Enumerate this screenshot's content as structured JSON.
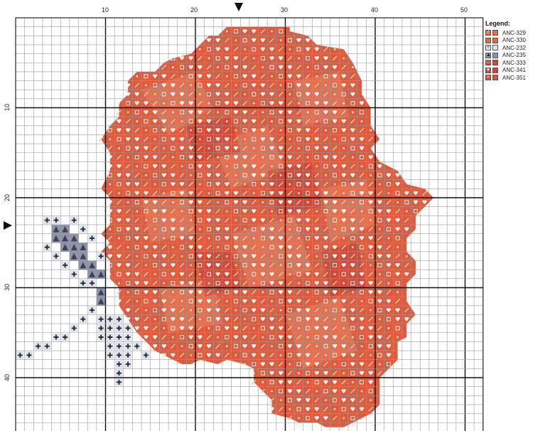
{
  "chart": {
    "grid": {
      "columns": 52,
      "rows": 47
    },
    "x_ticks": [
      "10",
      "20",
      "30",
      "40",
      "50"
    ],
    "y_ticks": [
      "10",
      "20",
      "30",
      "40"
    ],
    "markers": {
      "column": "25",
      "row": "23"
    }
  },
  "legend": {
    "title": "Legend:",
    "items": [
      {
        "code": "ANC-329",
        "color": "#e0704a",
        "symbol": "diag"
      },
      {
        "code": "ANC-330",
        "color": "#e66a3c",
        "symbol": "none"
      },
      {
        "code": "ANC-232",
        "color": "#dfe3ea",
        "symbol": "plus"
      },
      {
        "code": "ANC-235",
        "color": "#8e93a8",
        "symbol": "tri"
      },
      {
        "code": "ANC-333",
        "color": "#d8443a",
        "symbol": "square"
      },
      {
        "code": "ANC-341",
        "color": "#c94a3a",
        "symbol": "heart"
      },
      {
        "code": "ANC-351",
        "color": "#d9563e",
        "symbol": "dot"
      }
    ]
  }
}
